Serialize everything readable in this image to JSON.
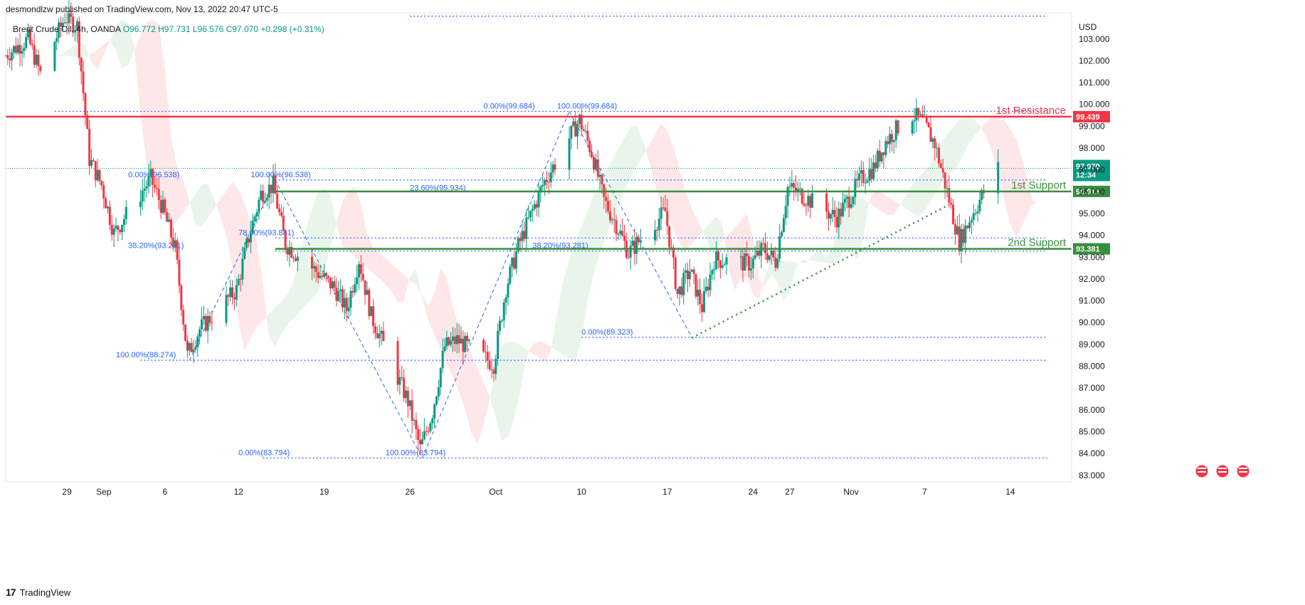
{
  "header": {
    "published": "desmondlzw published on TradingView.com, Nov 13, 2022 20:47 UTC-5",
    "symbol": "Brent Crude Oil, 4h, OANDA",
    "ohlc_o": "O96.772",
    "ohlc_h": "H97.731",
    "ohlc_l": "L96.576",
    "ohlc_c": "C97.070",
    "change": "+0.298 (+0.31%)"
  },
  "footer": {
    "logo": "17",
    "brand": "TradingView"
  },
  "colors": {
    "up": "#089981",
    "down": "#f23645",
    "resistance": "#f23645",
    "support": "#388e3c",
    "fib": "#2962ff"
  },
  "chart_data": {
    "type": "candlestick",
    "currency": "USD",
    "y_ticks": [
      "83.000",
      "84.000",
      "85.000",
      "86.000",
      "87.000",
      "88.000",
      "89.000",
      "90.000",
      "91.000",
      "92.000",
      "93.000",
      "94.000",
      "95.000",
      "96.000",
      "97.000",
      "98.000",
      "99.000",
      "100.000",
      "101.000",
      "102.000",
      "103.000"
    ],
    "ylim": [
      82.7,
      104.2
    ],
    "x_ticks": [
      {
        "label": "29",
        "date": "2022-08-29"
      },
      {
        "label": "Sep",
        "date": "2022-09-01"
      },
      {
        "label": "6",
        "date": "2022-09-06"
      },
      {
        "label": "12",
        "date": "2022-09-12"
      },
      {
        "label": "19",
        "date": "2022-09-19"
      },
      {
        "label": "26",
        "date": "2022-09-26"
      },
      {
        "label": "Oct",
        "date": "2022-10-03"
      },
      {
        "label": "10",
        "date": "2022-10-10"
      },
      {
        "label": "17",
        "date": "2022-10-17"
      },
      {
        "label": "24",
        "date": "2022-10-24"
      },
      {
        "label": "27",
        "date": "2022-10-27"
      },
      {
        "label": "Nov",
        "date": "2022-11-01"
      },
      {
        "label": "7",
        "date": "2022-11-07"
      },
      {
        "label": "14",
        "date": "2022-11-14"
      }
    ],
    "price_path": [
      [
        "2022-08-24",
        102.2
      ],
      [
        "2022-08-26",
        103.0
      ],
      [
        "2022-08-27",
        101.4
      ],
      [
        "2022-08-29",
        104.0
      ],
      [
        "2022-08-30",
        103.6
      ],
      [
        "2022-08-31",
        97.5
      ],
      [
        "2022-09-01",
        96.3
      ],
      [
        "2022-09-02",
        94.1
      ],
      [
        "2022-09-05",
        96.6
      ],
      [
        "2022-09-06",
        95.2
      ],
      [
        "2022-09-07",
        93.4
      ],
      [
        "2022-09-08",
        88.5
      ],
      [
        "2022-09-09",
        89.7
      ],
      [
        "2022-09-12",
        91.5
      ],
      [
        "2022-09-13",
        93.9
      ],
      [
        "2022-09-14",
        95.9
      ],
      [
        "2022-09-15",
        96.3
      ],
      [
        "2022-09-16",
        93.6
      ],
      [
        "2022-09-19",
        92.1
      ],
      [
        "2022-09-20",
        91.6
      ],
      [
        "2022-09-21",
        90.6
      ],
      [
        "2022-09-22",
        92.9
      ],
      [
        "2022-09-23",
        90.3
      ],
      [
        "2022-09-26",
        86.4
      ],
      [
        "2022-09-27",
        84.2
      ],
      [
        "2022-09-28",
        85.9
      ],
      [
        "2022-09-29",
        88.9
      ],
      [
        "2022-09-30",
        89.2
      ],
      [
        "2022-10-03",
        88.1
      ],
      [
        "2022-10-04",
        91.6
      ],
      [
        "2022-10-05",
        93.5
      ],
      [
        "2022-10-06",
        94.9
      ],
      [
        "2022-10-07",
        96.3
      ],
      [
        "2022-10-10",
        99.3
      ],
      [
        "2022-10-11",
        97.8
      ],
      [
        "2022-10-12",
        95.6
      ],
      [
        "2022-10-13",
        94.5
      ],
      [
        "2022-10-14",
        93.2
      ],
      [
        "2022-10-17",
        95.1
      ],
      [
        "2022-10-18",
        91.3
      ],
      [
        "2022-10-19",
        92.4
      ],
      [
        "2022-10-20",
        90.7
      ],
      [
        "2022-10-21",
        92.9
      ],
      [
        "2022-10-24",
        92.7
      ],
      [
        "2022-10-25",
        93.4
      ],
      [
        "2022-10-26",
        92.8
      ],
      [
        "2022-10-27",
        96.2
      ],
      [
        "2022-10-28",
        95.9
      ],
      [
        "2022-10-31",
        94.8
      ],
      [
        "2022-11-01",
        95.7
      ],
      [
        "2022-11-02",
        96.6
      ],
      [
        "2022-11-03",
        97.1
      ],
      [
        "2022-11-04",
        98.3
      ],
      [
        "2022-11-06",
        99.6
      ],
      [
        "2022-11-07",
        99.2
      ],
      [
        "2022-11-08",
        98.2
      ],
      [
        "2022-11-09",
        96.0
      ],
      [
        "2022-11-10",
        93.7
      ],
      [
        "2022-11-11",
        94.9
      ],
      [
        "2022-11-13",
        97.07
      ]
    ],
    "horizontal_levels": [
      {
        "name": "1st Resistance",
        "value": 99.439,
        "tag": "99.439",
        "color": "#f23645"
      },
      {
        "name": "1st Support",
        "value": 96.013,
        "tag": "96.013",
        "color": "#388e3c"
      },
      {
        "name": "2nd Support",
        "value": 93.381,
        "tag": "93.381",
        "color": "#388e3c"
      }
    ],
    "last_price": {
      "value": 97.07,
      "tag": "97.070",
      "countdown": "12:34"
    },
    "fib_labels": [
      {
        "text": "0.00%(99.684)",
        "date": "2022-10-02",
        "value": 99.684
      },
      {
        "text": "100.00%(99.684)",
        "date": "2022-10-08",
        "value": 99.684
      },
      {
        "text": "100.00%(96.538)",
        "date": "2022-09-13",
        "value": 96.538
      },
      {
        "text": "0.00%(96.538)",
        "date": "2022-09-03",
        "value": 96.538
      },
      {
        "text": "23.60%(95.934)",
        "date": "2022-09-26",
        "value": 95.934
      },
      {
        "text": "78.60%(93.881)",
        "date": "2022-09-12",
        "value": 93.881
      },
      {
        "text": "38.20%(93.281)",
        "date": "2022-09-03",
        "value": 93.281
      },
      {
        "text": "38.20%(93.281)",
        "date": "2022-10-06",
        "value": 93.281
      },
      {
        "text": "0.00%(89.323)",
        "date": "2022-10-10",
        "value": 89.323
      },
      {
        "text": "100.00%(88.274)",
        "date": "2022-09-02",
        "value": 88.274
      },
      {
        "text": "0.00%(83.794)",
        "date": "2022-09-12",
        "value": 83.794
      },
      {
        "text": "100.00%(83.794)",
        "date": "2022-09-24",
        "value": 83.794
      }
    ],
    "x_range": [
      "2022-08-24",
      "2022-11-19"
    ]
  }
}
